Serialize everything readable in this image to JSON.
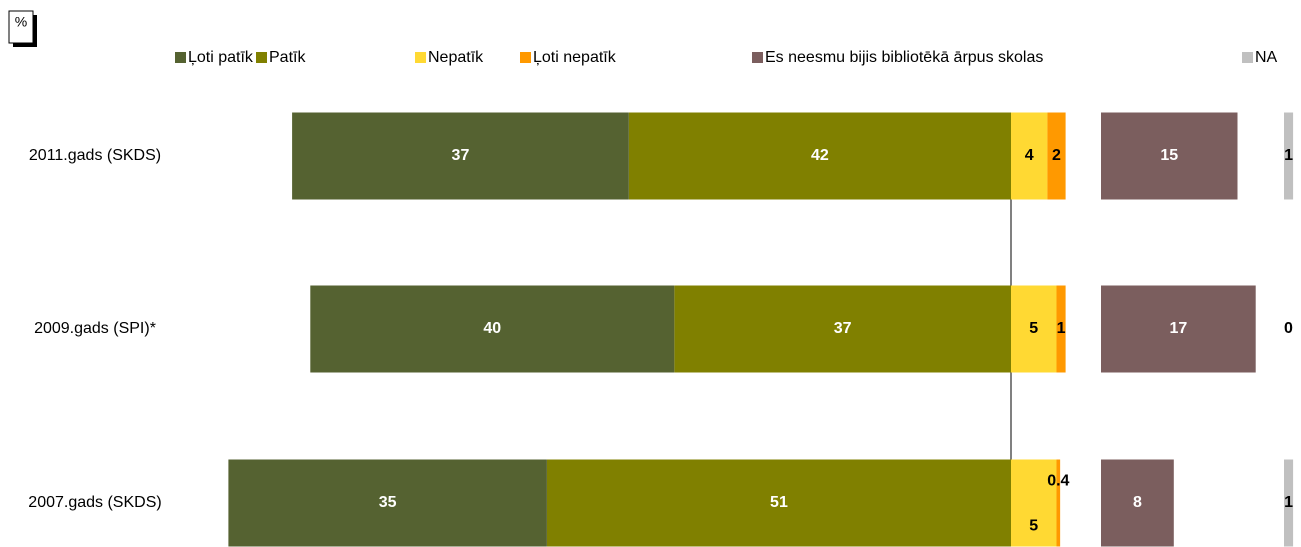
{
  "chart_data": {
    "type": "diverging_bar",
    "unit": "%",
    "categories": [
      "2011.gads (SKDS)",
      "2009.gads (SPI)*",
      "2007.gads (SKDS)"
    ],
    "series": [
      {
        "name": "Ļoti patīk",
        "color": "#556231",
        "values": [
          37,
          40,
          35
        ]
      },
      {
        "name": "Patīk",
        "color": "#808000",
        "values": [
          42,
          37,
          51
        ]
      },
      {
        "name": "Nepatīk",
        "color": "#ffd933",
        "values": [
          4,
          5,
          5
        ]
      },
      {
        "name": "Ļoti nepatīk",
        "color": "#ff9900",
        "values": [
          2,
          1,
          0.4
        ]
      },
      {
        "name": "Es neesmu bijis bibliotēkā ārpus skolas",
        "color": "#7b5e5e",
        "values": [
          15,
          17,
          8
        ]
      },
      {
        "name": "NA",
        "color": "#c0c0c0",
        "values": [
          1,
          0,
          1
        ]
      }
    ]
  }
}
